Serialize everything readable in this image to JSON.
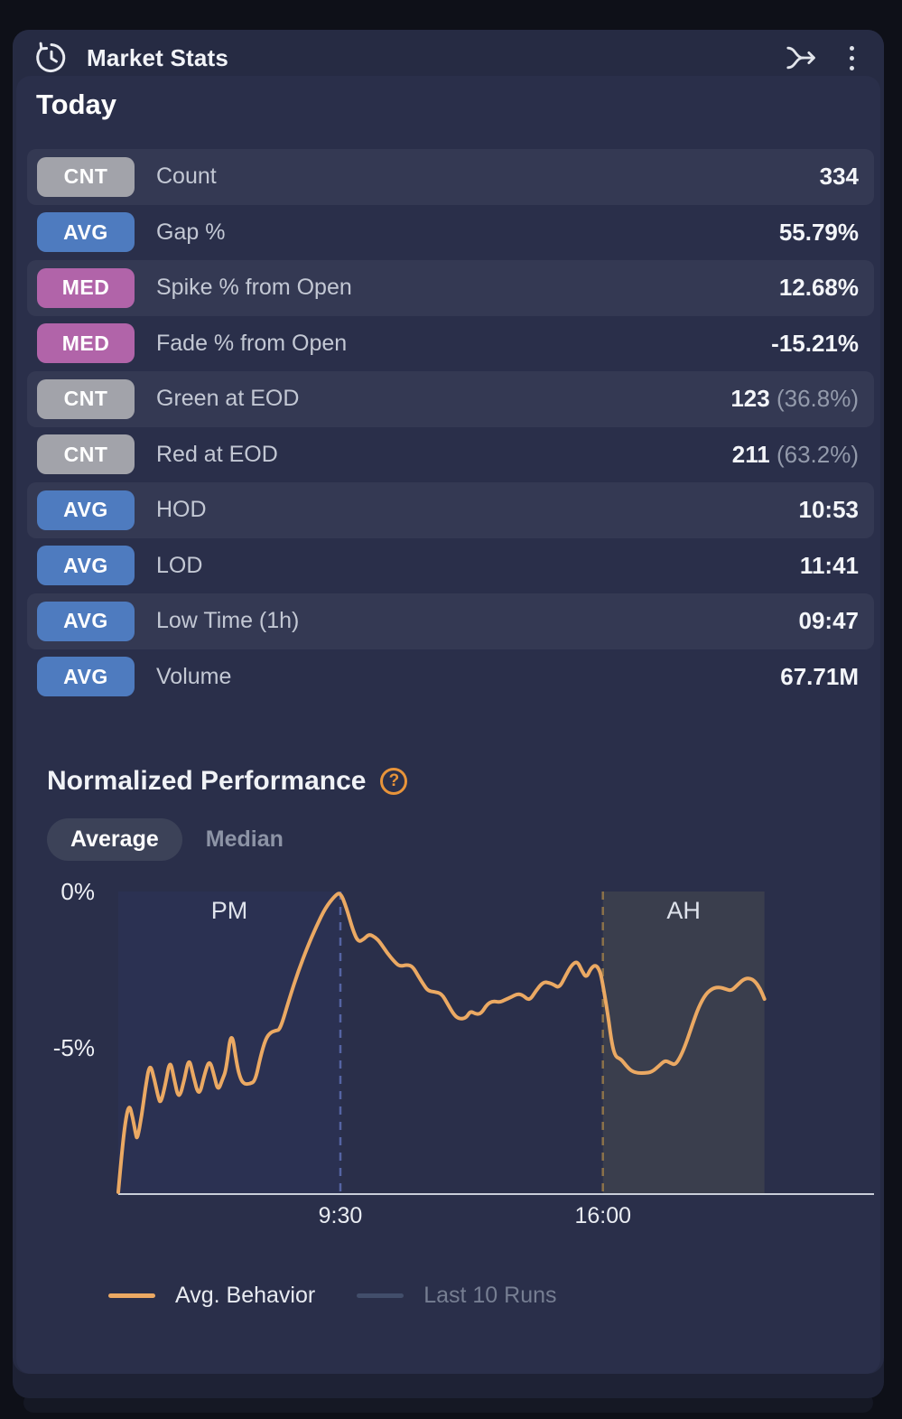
{
  "header": {
    "title": "Market Stats"
  },
  "today": {
    "heading": "Today",
    "badge_colors": {
      "CNT": "#a2a3aa",
      "AVG": "#4e7bbf",
      "MED": "#b164a9"
    },
    "rows": [
      {
        "badge": "CNT",
        "label": "Count",
        "value": "334",
        "sub": ""
      },
      {
        "badge": "AVG",
        "label": "Gap %",
        "value": "55.79%",
        "sub": ""
      },
      {
        "badge": "MED",
        "label": "Spike % from Open",
        "value": "12.68%",
        "sub": ""
      },
      {
        "badge": "MED",
        "label": "Fade % from Open",
        "value": "-15.21%",
        "sub": ""
      },
      {
        "badge": "CNT",
        "label": "Green at EOD",
        "value": "123",
        "sub": "(36.8%)"
      },
      {
        "badge": "CNT",
        "label": "Red at EOD",
        "value": "211",
        "sub": "(63.2%)"
      },
      {
        "badge": "AVG",
        "label": "HOD",
        "value": "10:53",
        "sub": ""
      },
      {
        "badge": "AVG",
        "label": "LOD",
        "value": "11:41",
        "sub": ""
      },
      {
        "badge": "AVG",
        "label": "Low Time (1h)",
        "value": "09:47",
        "sub": ""
      },
      {
        "badge": "AVG",
        "label": "Volume",
        "value": "67.71M",
        "sub": ""
      }
    ]
  },
  "performance": {
    "heading": "Normalized Performance",
    "help_glyph": "?",
    "tabs": [
      {
        "label": "Average",
        "active": true
      },
      {
        "label": "Median",
        "active": false
      }
    ],
    "legend": [
      {
        "label": "Avg. Behavior",
        "color": "#eba963",
        "muted": false
      },
      {
        "label": "Last 10 Runs",
        "color": "#424e6b",
        "muted": true
      }
    ]
  },
  "chart_data": {
    "type": "line",
    "title": "Normalized Performance",
    "selected_mode": "Average",
    "x_unit": "hour_of_day",
    "xlim": [
      4,
      22.7
    ],
    "ylim": [
      -9.7,
      0
    ],
    "grid": false,
    "yticks": [
      {
        "value": 0,
        "label": "0%"
      },
      {
        "value": -5,
        "label": "-5%"
      }
    ],
    "xticks": [
      {
        "value": 9.5,
        "label": "9:30"
      },
      {
        "value": 16,
        "label": "16:00"
      }
    ],
    "vlines": [
      {
        "value": 9.5,
        "color": "#5564a3"
      },
      {
        "value": 16,
        "color": "#8b7149"
      }
    ],
    "regions": [
      {
        "label": "PM",
        "from": 4,
        "to": 9.5,
        "color": "#2b3152"
      },
      {
        "label": "AH",
        "from": 16,
        "to": 20,
        "color": "#3a3e4d"
      }
    ],
    "axis_color": "#c9ced9",
    "tick_label_color": "#e9ecf2",
    "series": [
      {
        "name": "Avg. Behavior",
        "color": "#eba963",
        "points": [
          [
            4.0,
            -9.62
          ],
          [
            4.09,
            -8.32
          ],
          [
            4.18,
            -7.31
          ],
          [
            4.27,
            -6.79
          ],
          [
            4.36,
            -7.25
          ],
          [
            4.43,
            -7.75
          ],
          [
            4.47,
            -7.95
          ],
          [
            4.58,
            -7.17
          ],
          [
            4.67,
            -6.3
          ],
          [
            4.78,
            -5.46
          ],
          [
            4.9,
            -6.04
          ],
          [
            4.99,
            -6.59
          ],
          [
            5.05,
            -6.79
          ],
          [
            5.17,
            -6.16
          ],
          [
            5.28,
            -5.35
          ],
          [
            5.39,
            -6.04
          ],
          [
            5.5,
            -6.68
          ],
          [
            5.64,
            -6.01
          ],
          [
            5.75,
            -5.29
          ],
          [
            5.86,
            -5.92
          ],
          [
            6.0,
            -6.59
          ],
          [
            6.13,
            -5.87
          ],
          [
            6.26,
            -5.35
          ],
          [
            6.38,
            -5.92
          ],
          [
            6.47,
            -6.39
          ],
          [
            6.58,
            -6.01
          ],
          [
            6.67,
            -5.72
          ],
          [
            6.8,
            -4.36
          ],
          [
            6.94,
            -5.58
          ],
          [
            7.03,
            -6.01
          ],
          [
            7.12,
            -6.16
          ],
          [
            7.25,
            -6.16
          ],
          [
            7.39,
            -6.07
          ],
          [
            7.52,
            -5.29
          ],
          [
            7.65,
            -4.71
          ],
          [
            7.77,
            -4.51
          ],
          [
            7.9,
            -4.45
          ],
          [
            8.01,
            -4.42
          ],
          [
            8.24,
            -3.41
          ],
          [
            8.46,
            -2.54
          ],
          [
            8.69,
            -1.76
          ],
          [
            8.91,
            -1.1
          ],
          [
            9.13,
            -0.52
          ],
          [
            9.36,
            -0.14
          ],
          [
            9.5,
            -0.02
          ],
          [
            9.65,
            -0.52
          ],
          [
            9.81,
            -1.24
          ],
          [
            9.94,
            -1.62
          ],
          [
            10.08,
            -1.53
          ],
          [
            10.21,
            -1.36
          ],
          [
            10.37,
            -1.47
          ],
          [
            10.48,
            -1.62
          ],
          [
            10.66,
            -1.97
          ],
          [
            10.84,
            -2.25
          ],
          [
            10.97,
            -2.4
          ],
          [
            11.15,
            -2.34
          ],
          [
            11.29,
            -2.4
          ],
          [
            11.42,
            -2.69
          ],
          [
            11.56,
            -2.98
          ],
          [
            11.67,
            -3.18
          ],
          [
            11.83,
            -3.21
          ],
          [
            12.01,
            -3.27
          ],
          [
            12.16,
            -3.61
          ],
          [
            12.32,
            -3.96
          ],
          [
            12.45,
            -4.08
          ],
          [
            12.61,
            -4.05
          ],
          [
            12.72,
            -3.82
          ],
          [
            12.86,
            -3.93
          ],
          [
            12.99,
            -3.9
          ],
          [
            13.13,
            -3.61
          ],
          [
            13.28,
            -3.5
          ],
          [
            13.44,
            -3.55
          ],
          [
            13.57,
            -3.47
          ],
          [
            13.73,
            -3.38
          ],
          [
            13.89,
            -3.27
          ],
          [
            14.02,
            -3.32
          ],
          [
            14.18,
            -3.5
          ],
          [
            14.34,
            -3.18
          ],
          [
            14.52,
            -2.89
          ],
          [
            14.67,
            -2.92
          ],
          [
            14.78,
            -2.98
          ],
          [
            14.92,
            -3.09
          ],
          [
            15.08,
            -2.69
          ],
          [
            15.23,
            -2.34
          ],
          [
            15.37,
            -2.23
          ],
          [
            15.48,
            -2.54
          ],
          [
            15.59,
            -2.77
          ],
          [
            15.7,
            -2.46
          ],
          [
            15.82,
            -2.34
          ],
          [
            15.93,
            -2.54
          ],
          [
            16.0,
            -2.98
          ],
          [
            16.13,
            -3.99
          ],
          [
            16.22,
            -4.86
          ],
          [
            16.31,
            -5.29
          ],
          [
            16.44,
            -5.35
          ],
          [
            16.58,
            -5.58
          ],
          [
            16.71,
            -5.75
          ],
          [
            16.87,
            -5.81
          ],
          [
            17.03,
            -5.81
          ],
          [
            17.21,
            -5.78
          ],
          [
            17.39,
            -5.58
          ],
          [
            17.54,
            -5.4
          ],
          [
            17.68,
            -5.49
          ],
          [
            17.79,
            -5.55
          ],
          [
            17.92,
            -5.29
          ],
          [
            18.06,
            -4.86
          ],
          [
            18.21,
            -4.28
          ],
          [
            18.37,
            -3.7
          ],
          [
            18.55,
            -3.27
          ],
          [
            18.73,
            -3.09
          ],
          [
            18.89,
            -3.06
          ],
          [
            19.04,
            -3.12
          ],
          [
            19.18,
            -3.18
          ],
          [
            19.34,
            -2.98
          ],
          [
            19.49,
            -2.8
          ],
          [
            19.63,
            -2.77
          ],
          [
            19.76,
            -2.86
          ],
          [
            19.9,
            -3.12
          ],
          [
            20.0,
            -3.44
          ]
        ]
      }
    ],
    "legend_entries": [
      "Avg. Behavior",
      "Last 10 Runs"
    ],
    "legend_position": "bottom"
  }
}
